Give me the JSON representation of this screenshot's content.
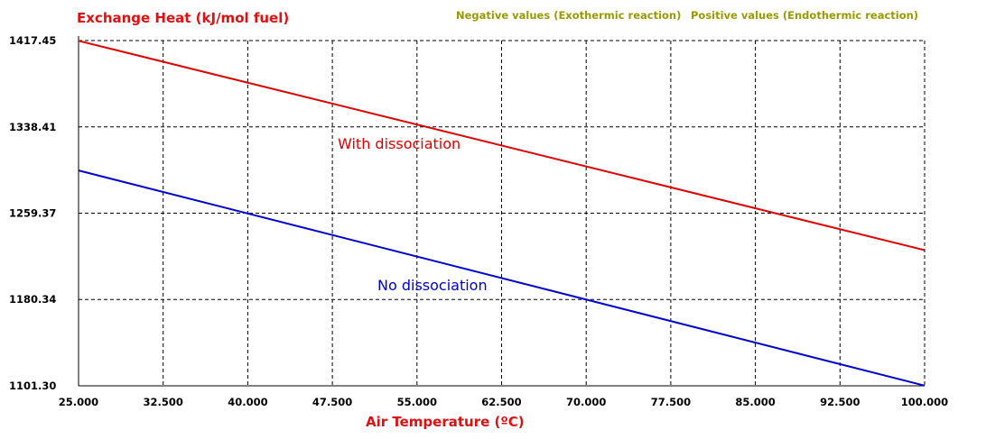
{
  "chart_data": {
    "type": "line",
    "title": "Exchange Heat (kJ/mol fuel)",
    "xlabel": "Air Temperature (ºC)",
    "legend_notes": [
      "Negative values (Exothermic reaction)",
      "Positive values (Endothermic reaction)"
    ],
    "xlim": [
      25.0,
      100.0
    ],
    "ylim": [
      1101.3,
      1417.45
    ],
    "x_ticks": [
      25,
      32.5,
      40,
      47.5,
      55,
      62.5,
      70,
      77.5,
      85,
      92.5,
      100
    ],
    "x_tick_labels": [
      "25.000",
      "32.500",
      "40.000",
      "47.500",
      "55.000",
      "62.500",
      "70.000",
      "77.500",
      "85.000",
      "92.500",
      "100.000"
    ],
    "y_ticks": [
      1417.45,
      1338.41,
      1259.37,
      1180.34,
      1101.3
    ],
    "y_tick_labels": [
      "1417.45",
      "1338.41",
      "1259.37",
      "1180.34",
      "1101.30"
    ],
    "grid": true,
    "series": [
      {
        "name": "With dissociation",
        "color": "#e00000",
        "x": [
          25,
          100
        ],
        "y": [
          1417.2,
          1225.5
        ]
      },
      {
        "name": "No dissociation",
        "color": "#0000d0",
        "x": [
          25,
          100
        ],
        "y": [
          1298.5,
          1101.5
        ]
      }
    ],
    "colors": {
      "title": "#dd1111",
      "xlabel": "#dd1111",
      "legend_note": "#999900",
      "axis": "#000000",
      "grid": "#000000"
    }
  }
}
